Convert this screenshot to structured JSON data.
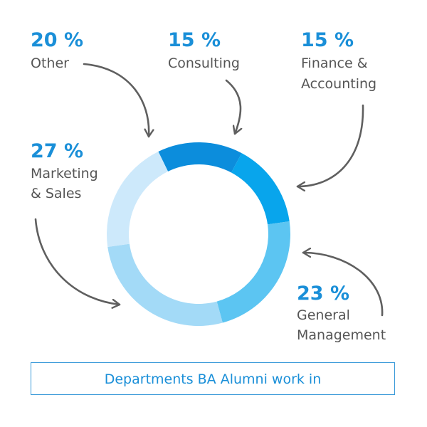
{
  "chart_data": {
    "type": "pie",
    "style": "donut",
    "title": "Departments BA Alumni work in",
    "categories": [
      "Consulting",
      "Finance & Accounting",
      "General Management",
      "Marketing & Sales",
      "Other"
    ],
    "values": [
      15,
      15,
      23,
      27,
      20
    ],
    "colors": [
      "#0c8ddc",
      "#08a5ec",
      "#5cc5f2",
      "#a3daf7",
      "#cde9fb"
    ],
    "labels": [
      {
        "pct": "15 %",
        "line1": "Consulting",
        "line2": ""
      },
      {
        "pct": "15 %",
        "line1": "Finance &",
        "line2": "Accounting"
      },
      {
        "pct": "23 %",
        "line1": "General",
        "line2": "Management"
      },
      {
        "pct": "27 %",
        "line1": "Marketing",
        "line2": "& Sales"
      },
      {
        "pct": "20 %",
        "line1": "Other",
        "line2": ""
      }
    ]
  }
}
